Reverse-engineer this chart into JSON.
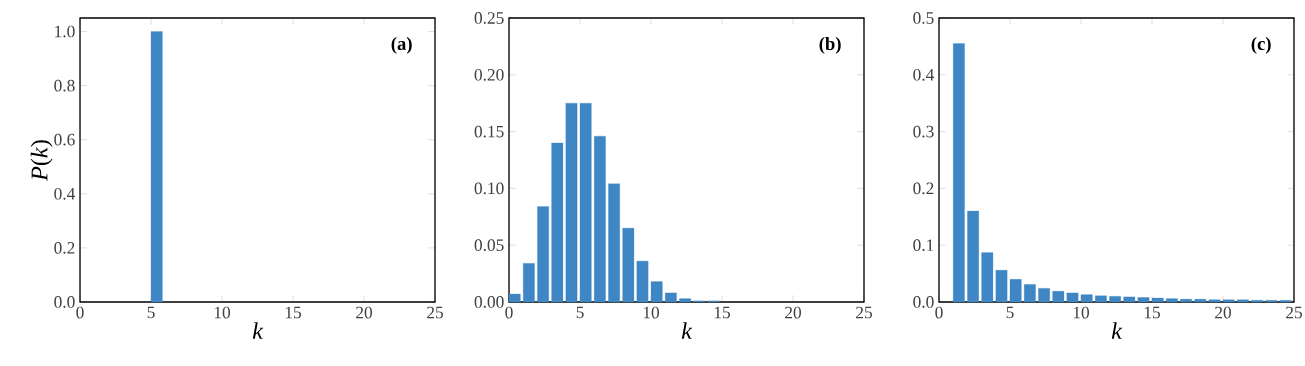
{
  "chart_data": [
    {
      "type": "bar",
      "xlabel": "*k*",
      "ylabel": "*P*(*k*)",
      "annotations": [
        "(a)"
      ],
      "color": "#3e87c4",
      "x": [
        5.4
      ],
      "values": [
        1.0
      ],
      "xlim": [
        0,
        25
      ],
      "xticks": [
        0,
        5,
        10,
        15,
        20,
        25
      ],
      "ylim": [
        0,
        1.05
      ],
      "yticks": [
        {
          "value": 0,
          "label": "0.0"
        },
        0.2,
        0.4,
        0.6,
        0.8,
        {
          "value": 1,
          "label": "1.0"
        }
      ]
    },
    {
      "type": "bar",
      "xlabel": "*k*",
      "annotations": [
        "(b)"
      ],
      "color": "#3e87c4",
      "x": [
        0.4,
        1.4,
        2.4,
        3.4,
        4.4,
        5.4,
        6.4,
        7.4,
        8.4,
        9.4,
        10.4,
        11.4,
        12.4,
        13.4,
        14.4
      ],
      "values": [
        0.007,
        0.034,
        0.084,
        0.14,
        0.175,
        0.175,
        0.146,
        0.104,
        0.065,
        0.036,
        0.018,
        0.008,
        0.003,
        0.001,
        0.001
      ],
      "xlim": [
        0,
        25
      ],
      "xticks": [
        0,
        5,
        10,
        15,
        20,
        25
      ],
      "ylim": [
        0,
        0.25
      ],
      "yticks": [
        {
          "value": 0,
          "label": "0.00"
        },
        0.05,
        {
          "value": 0.1,
          "label": "0.10"
        },
        0.15,
        {
          "value": 0.2,
          "label": "0.20"
        },
        0.25
      ]
    },
    {
      "type": "bar",
      "xlabel": "*k*",
      "annotations": [
        "(c)"
      ],
      "color": "#3e87c4",
      "x": [
        1.4,
        2.4,
        3.4,
        4.4,
        5.4,
        6.4,
        7.4,
        8.4,
        9.4,
        10.4,
        11.4,
        12.4,
        13.4,
        14.4,
        15.4,
        16.4,
        17.4,
        18.4,
        19.4,
        20.4,
        21.4,
        22.4,
        23.4,
        24.4
      ],
      "values": [
        0.455,
        0.16,
        0.087,
        0.056,
        0.04,
        0.031,
        0.024,
        0.019,
        0.016,
        0.013,
        0.011,
        0.01,
        0.009,
        0.008,
        0.007,
        0.006,
        0.005,
        0.005,
        0.004,
        0.004,
        0.004,
        0.003,
        0.003,
        0.003
      ],
      "xlim": [
        0,
        25
      ],
      "xticks": [
        0,
        5,
        10,
        15,
        20,
        25
      ],
      "ylim": [
        0,
        0.5
      ],
      "yticks": [
        {
          "value": 0,
          "label": "0.0"
        },
        0.1,
        0.2,
        0.3,
        0.4,
        0.5
      ]
    }
  ]
}
